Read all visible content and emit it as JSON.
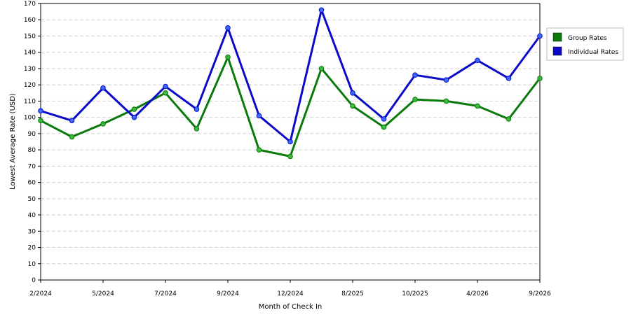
{
  "chart_data": {
    "type": "line",
    "xlabel": "Month of Check In",
    "ylabel": "Lowest Average Rate (USD)",
    "ylim": [
      0,
      170
    ],
    "ytick_step": 10,
    "grid": true,
    "legend_position": "right",
    "point_count": 17,
    "x_tick_labels": [
      {
        "index": 0,
        "label": "2/2024"
      },
      {
        "index": 2,
        "label": "5/2024"
      },
      {
        "index": 4,
        "label": "7/2024"
      },
      {
        "index": 6,
        "label": "9/2024"
      },
      {
        "index": 8,
        "label": "12/2024"
      },
      {
        "index": 10,
        "label": "8/2025"
      },
      {
        "index": 12,
        "label": "10/2025"
      },
      {
        "index": 14,
        "label": "4/2026"
      },
      {
        "index": 16,
        "label": "9/2026"
      }
    ],
    "series": [
      {
        "name": "Group Rates",
        "color": "#0a7a0a",
        "marker_color": "#3cb83c",
        "values": [
          98,
          88,
          96,
          105,
          115,
          93,
          137,
          80,
          76,
          130,
          107,
          94,
          111,
          110,
          107,
          99,
          124
        ]
      },
      {
        "name": "Individual Rates",
        "color": "#0a0ac8",
        "marker_color": "#3c6cff",
        "values": [
          104,
          98,
          118,
          100,
          119,
          105,
          155,
          101,
          85,
          166,
          115,
          99,
          126,
          123,
          135,
          124,
          150
        ]
      }
    ]
  }
}
